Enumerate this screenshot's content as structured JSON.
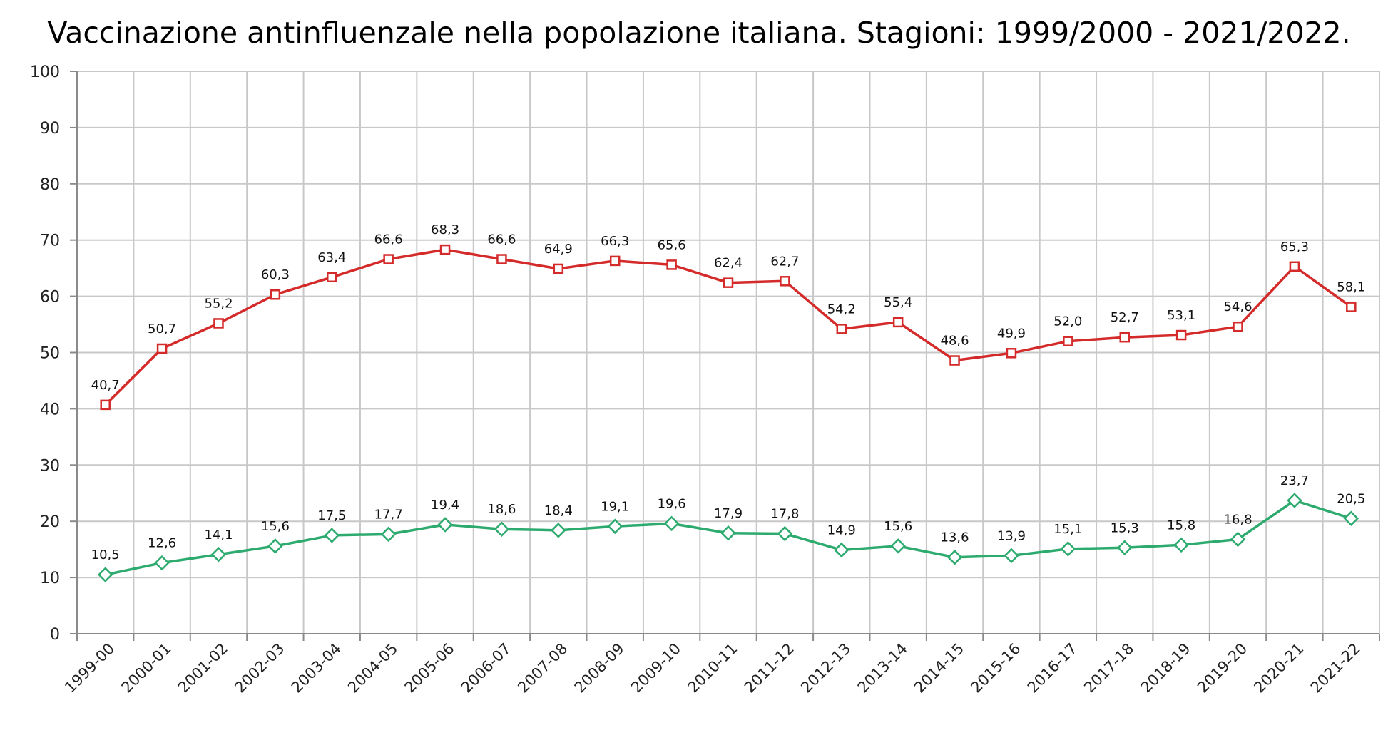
{
  "chart_data": {
    "type": "line",
    "title": "Vaccinazione antinfluenzale nella popolazione italiana. Stagioni: 1999/2000 - 2021/2022.",
    "xlabel": "",
    "ylabel": "",
    "ylim": [
      0,
      100
    ],
    "yticks": [
      "0",
      "10",
      "20",
      "30",
      "40",
      "50",
      "60",
      "70",
      "80",
      "90",
      "100"
    ],
    "grid": true,
    "legend": "none",
    "categories": [
      "1999-00",
      "2000-01",
      "2001-02",
      "2002-03",
      "2003-04",
      "2004-05",
      "2005-06",
      "2006-07",
      "2007-08",
      "2008-09",
      "2009-10",
      "2010-11",
      "2011-12",
      "2012-13",
      "2013-14",
      "2014-15",
      "2015-16",
      "2016-17",
      "2017-18",
      "2018-19",
      "2019-20",
      "2020-21",
      "2021-22"
    ],
    "series": [
      {
        "color": "#d42a2a",
        "marker": "square",
        "values": [
          40.7,
          50.7,
          55.2,
          60.3,
          63.4,
          66.6,
          68.3,
          66.6,
          64.9,
          66.3,
          65.6,
          62.4,
          62.7,
          54.2,
          55.4,
          48.6,
          49.9,
          52.0,
          52.7,
          53.1,
          54.6,
          65.3,
          58.1
        ],
        "labels": [
          "40,7",
          "50,7",
          "55,2",
          "60,3",
          "63,4",
          "66,6",
          "68,3",
          "66,6",
          "64,9",
          "66,3",
          "65,6",
          "62,4",
          "62,7",
          "54,2",
          "55,4",
          "48,6",
          "49,9",
          "52,0",
          "52,7",
          "53,1",
          "54,6",
          "65,3",
          "58,1"
        ]
      },
      {
        "color": "#2daa6e",
        "marker": "diamond",
        "values": [
          10.5,
          12.6,
          14.1,
          15.6,
          17.5,
          17.7,
          19.4,
          18.6,
          18.4,
          19.1,
          19.6,
          17.9,
          17.8,
          14.9,
          15.6,
          13.6,
          13.9,
          15.1,
          15.3,
          15.8,
          16.8,
          23.7,
          20.5
        ],
        "labels": [
          "10,5",
          "12,6",
          "14,1",
          "15,6",
          "17,5",
          "17,7",
          "19,4",
          "18,6",
          "18,4",
          "19,1",
          "19,6",
          "17,9",
          "17,8",
          "14,9",
          "15,6",
          "13,6",
          "13,9",
          "15,1",
          "15,3",
          "15,8",
          "16,8",
          "23,7",
          "20,5"
        ]
      }
    ]
  }
}
